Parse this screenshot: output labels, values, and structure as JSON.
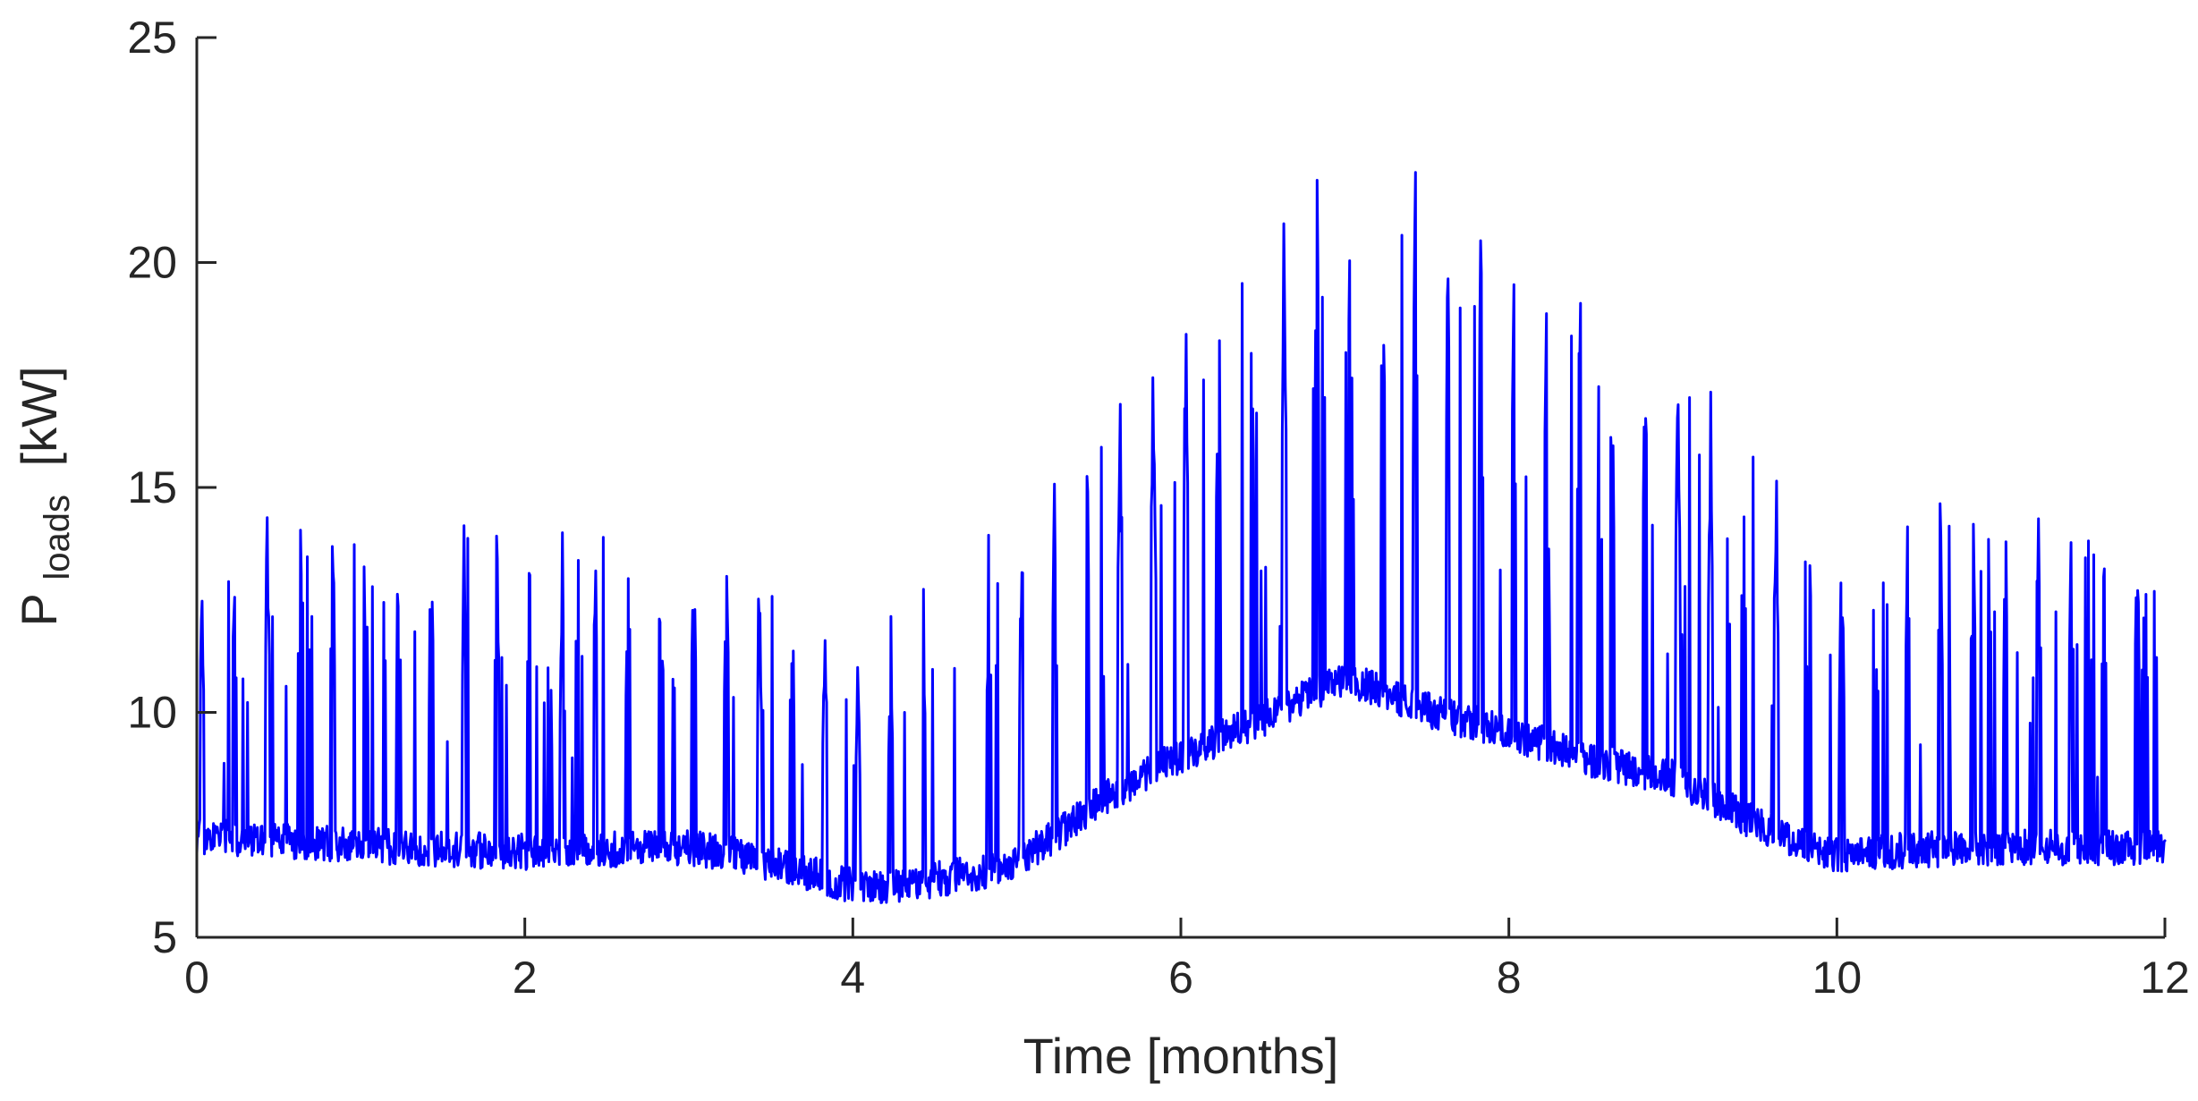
{
  "chart_data": {
    "type": "line",
    "title": "",
    "xlabel": "Time [months]",
    "ylabel": {
      "main": "P",
      "subscript": "loads",
      "unit": "[kW]"
    },
    "xlim": [
      0,
      12
    ],
    "ylim": [
      5,
      25
    ],
    "xticks": [
      0,
      2,
      4,
      6,
      8,
      10,
      12
    ],
    "yticks": [
      5,
      10,
      15,
      20,
      25
    ],
    "grid": false,
    "legend": "none",
    "line_color": "#0000ff",
    "axis_color": "#262626",
    "series": [
      {
        "baseline_kw": [
          [
            0,
            6.6
          ],
          [
            0.5,
            6.5
          ],
          [
            1,
            6.4
          ],
          [
            1.5,
            6.3
          ],
          [
            2,
            6.25
          ],
          [
            2.5,
            6.3
          ],
          [
            3,
            6.35
          ],
          [
            3.3,
            6.2
          ],
          [
            3.6,
            5.9
          ],
          [
            4,
            5.5
          ],
          [
            4.3,
            5.5
          ],
          [
            4.7,
            5.75
          ],
          [
            5,
            6.0
          ],
          [
            5.3,
            6.8
          ],
          [
            5.6,
            7.6
          ],
          [
            6,
            8.4
          ],
          [
            6.5,
            9.2
          ],
          [
            7,
            10.1
          ],
          [
            7.5,
            9.4
          ],
          [
            8,
            8.9
          ],
          [
            8.5,
            8.3
          ],
          [
            9,
            7.9
          ],
          [
            9.5,
            6.9
          ],
          [
            9.9,
            6.2
          ],
          [
            10,
            6.2
          ],
          [
            10.5,
            6.3
          ],
          [
            11,
            6.35
          ],
          [
            11.5,
            6.35
          ],
          [
            12,
            6.35
          ]
        ],
        "peak_envelope_kw": [
          [
            0,
            13.3
          ],
          [
            0.3,
            15.2
          ],
          [
            1,
            15.0
          ],
          [
            1.5,
            14.9
          ],
          [
            2,
            14.7
          ],
          [
            2.5,
            14.8
          ],
          [
            3,
            15.0
          ],
          [
            3.3,
            14.5
          ],
          [
            3.6,
            13.5
          ],
          [
            4,
            11.8
          ],
          [
            4.2,
            12.8
          ],
          [
            4.5,
            13.3
          ],
          [
            4.8,
            13.8
          ],
          [
            5,
            14.8
          ],
          [
            5.3,
            16.2
          ],
          [
            5.6,
            17.6
          ],
          [
            5.9,
            19.0
          ],
          [
            6.2,
            20.2
          ],
          [
            6.5,
            21.1
          ],
          [
            6.7,
            22.9
          ],
          [
            6.95,
            23.8
          ],
          [
            7.2,
            23.2
          ],
          [
            7.45,
            22.6
          ],
          [
            7.7,
            21.8
          ],
          [
            7.95,
            21.2
          ],
          [
            8.2,
            20.1
          ],
          [
            8.5,
            19.6
          ],
          [
            8.8,
            19.4
          ],
          [
            9.1,
            18.3
          ],
          [
            9.4,
            17.3
          ],
          [
            9.7,
            16.1
          ],
          [
            10,
            15.0
          ],
          [
            10.5,
            15.1
          ],
          [
            11,
            15.3
          ],
          [
            11.5,
            15.2
          ],
          [
            11.9,
            15.3
          ]
        ]
      }
    ]
  }
}
